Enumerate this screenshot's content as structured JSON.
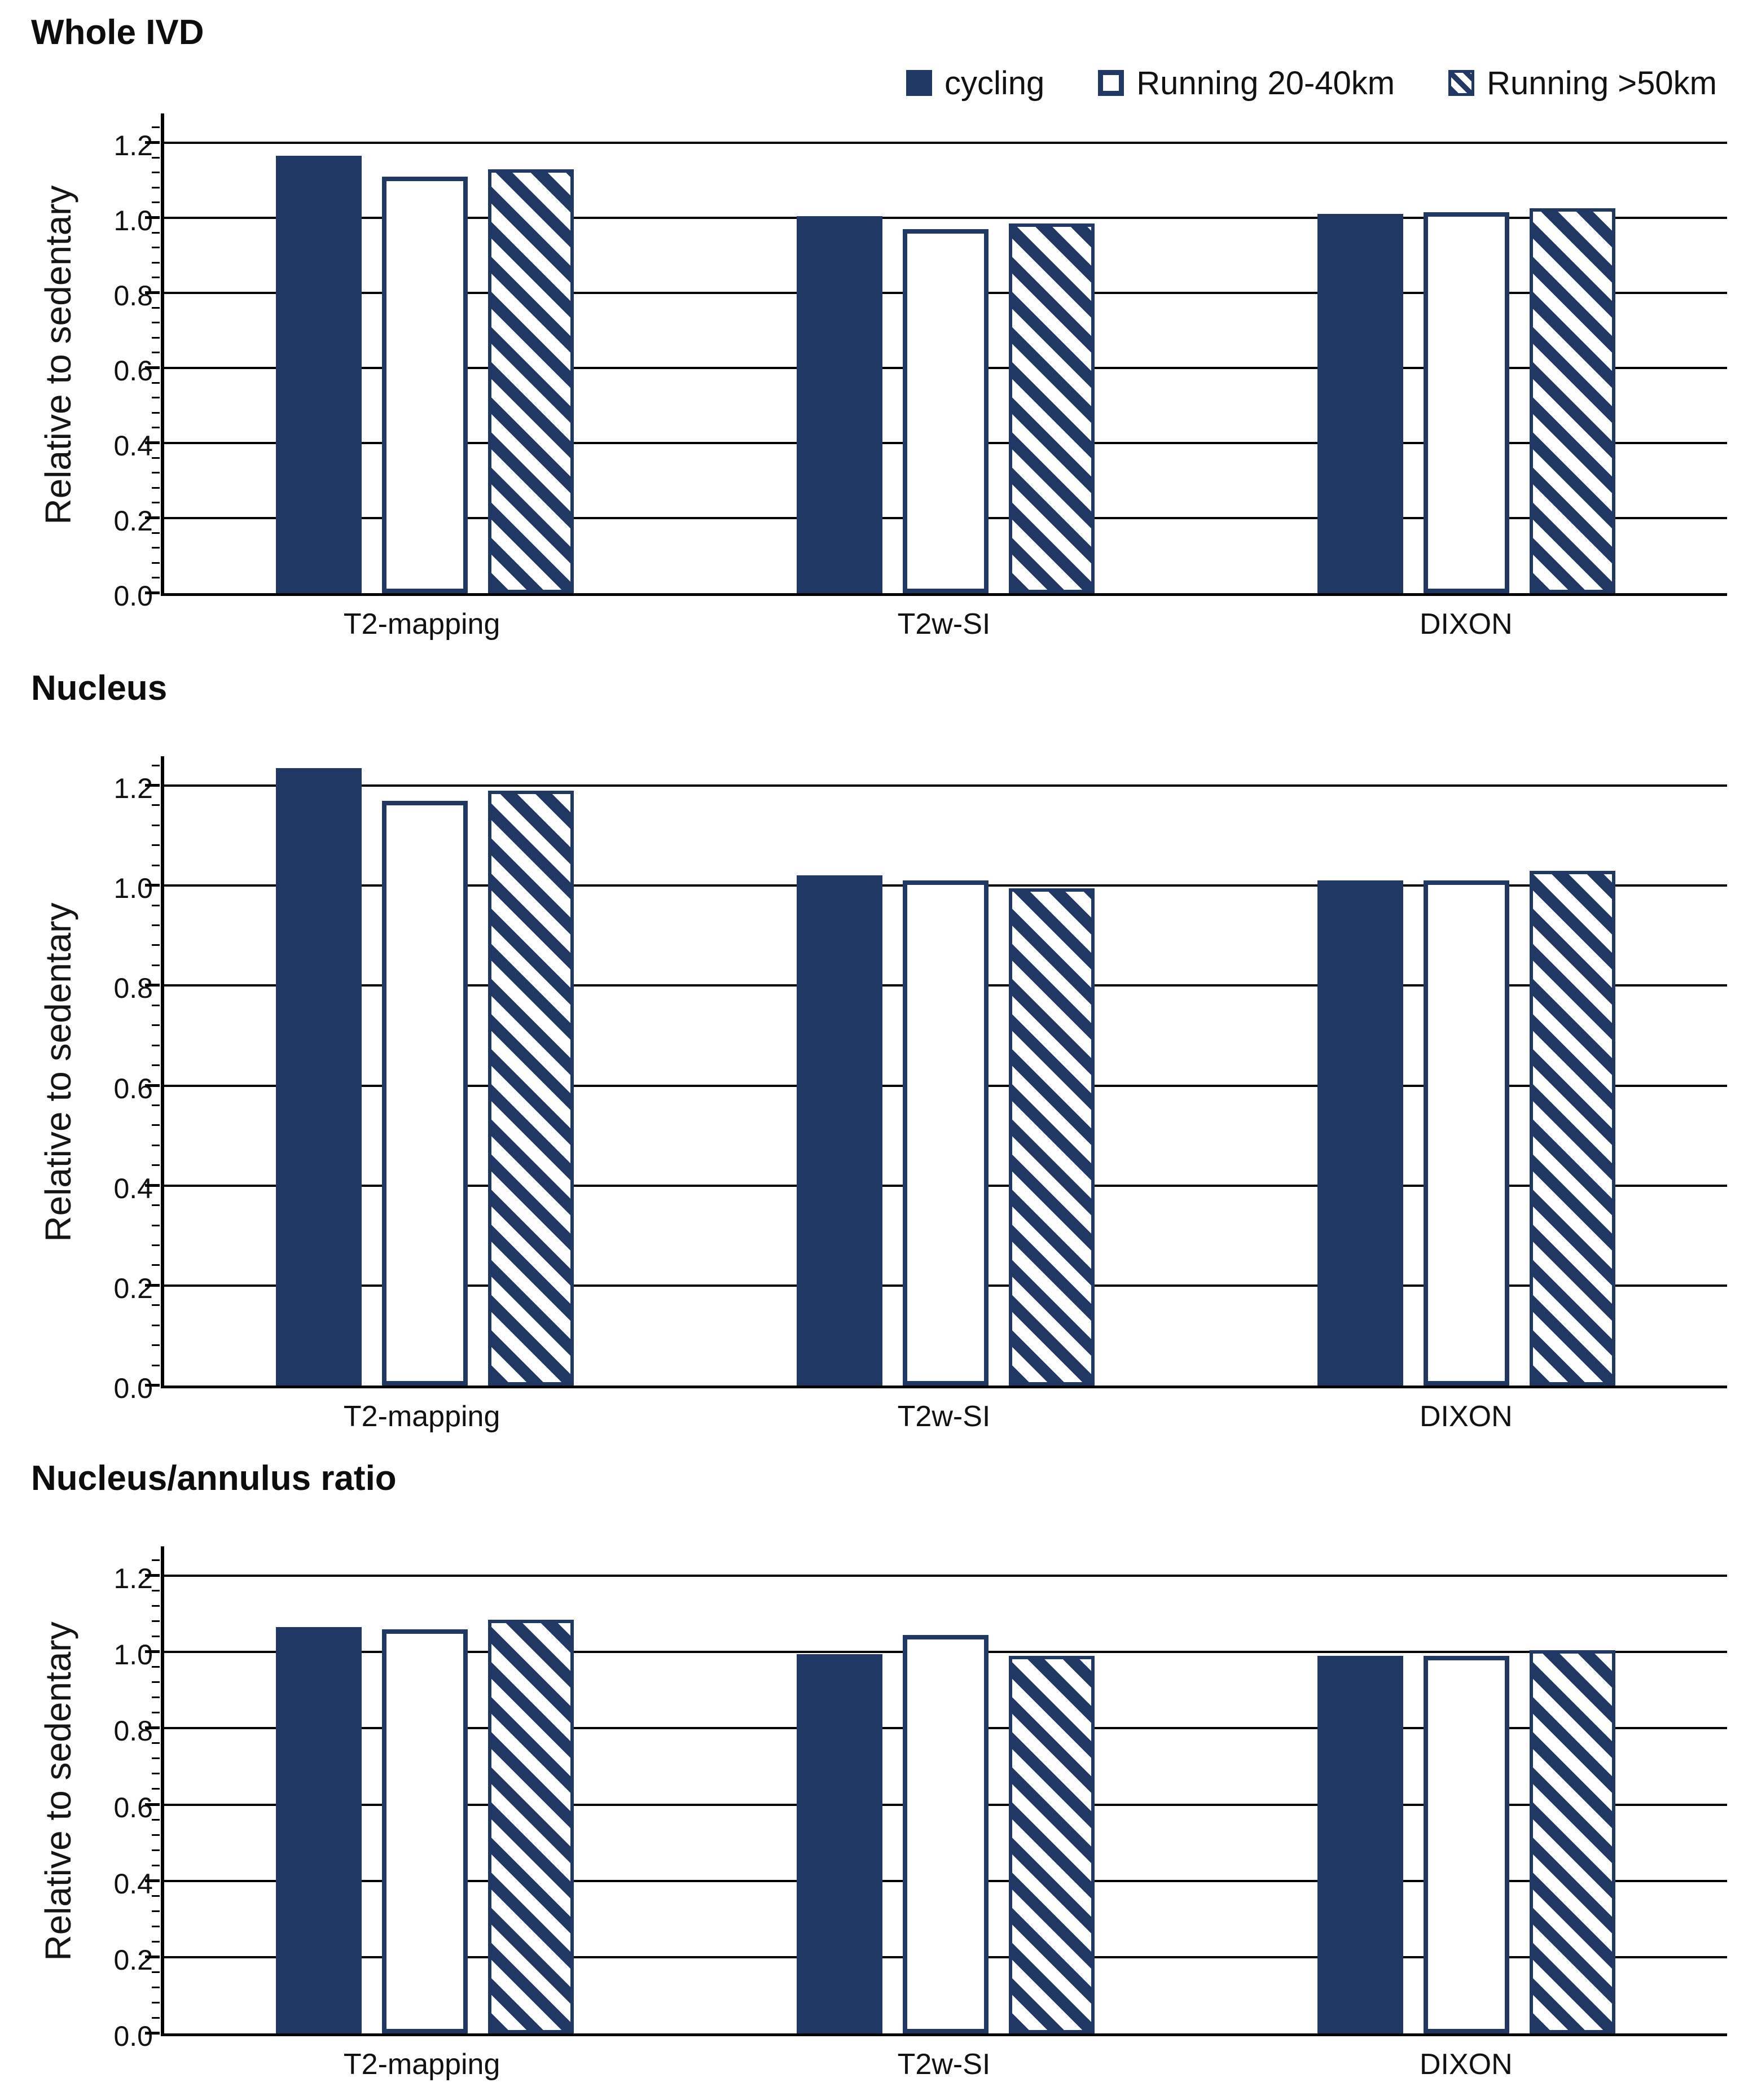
{
  "colors": {
    "navy": "#203864",
    "axis": "#000000",
    "background": "#ffffff"
  },
  "legend": [
    {
      "label": "cycling",
      "style": "solid"
    },
    {
      "label": "Running 20-40km",
      "style": "open"
    },
    {
      "label": "Running >50km",
      "style": "hatched"
    }
  ],
  "chart_data": [
    {
      "type": "bar",
      "title": "Whole IVD",
      "ylabel": "Relative to sedentary",
      "ylim": [
        0,
        1.2
      ],
      "ytick_step": 0.2,
      "ytick_labels": [
        "0.0",
        "0.2",
        "0.4",
        "0.6",
        "0.8",
        "1.0",
        "1.2"
      ],
      "grid": true,
      "legend_position": "top-right",
      "categories": [
        "T2-mapping",
        "T2w-SI",
        "DIXON"
      ],
      "series": [
        {
          "name": "cycling",
          "values": [
            1.165,
            1.005,
            1.01
          ]
        },
        {
          "name": "Running 20-40km",
          "values": [
            1.11,
            0.97,
            1.015
          ]
        },
        {
          "name": "Running >50km",
          "values": [
            1.13,
            0.985,
            1.025
          ]
        }
      ]
    },
    {
      "type": "bar",
      "title": "Nucleus",
      "ylabel": "Relative to sedentary",
      "ylim": [
        0,
        1.2
      ],
      "ytick_step": 0.2,
      "ytick_labels": [
        "0.0",
        "0.2",
        "0.4",
        "0.6",
        "0.8",
        "1.0",
        "1.2"
      ],
      "grid": true,
      "legend_position": "none",
      "categories": [
        "T2-mapping",
        "T2w-SI",
        "DIXON"
      ],
      "series": [
        {
          "name": "cycling",
          "values": [
            1.235,
            1.02,
            1.01
          ]
        },
        {
          "name": "Running 20-40km",
          "values": [
            1.17,
            1.01,
            1.01
          ]
        },
        {
          "name": "Running >50km",
          "values": [
            1.19,
            0.995,
            1.03
          ]
        }
      ]
    },
    {
      "type": "bar",
      "title": "Nucleus/annulus ratio",
      "ylabel": "Relative to sedentary",
      "ylim": [
        0,
        1.2
      ],
      "ytick_step": 0.2,
      "ytick_labels": [
        "0.0",
        "0.2",
        "0.4",
        "0.6",
        "0.8",
        "1.0",
        "1.2"
      ],
      "grid": true,
      "legend_position": "none",
      "categories": [
        "T2-mapping",
        "T2w-SI",
        "DIXON"
      ],
      "series": [
        {
          "name": "cycling",
          "values": [
            1.065,
            0.995,
            0.99
          ]
        },
        {
          "name": "Running 20-40km",
          "values": [
            1.06,
            1.045,
            0.99
          ]
        },
        {
          "name": "Running >50km",
          "values": [
            1.085,
            0.99,
            1.005
          ]
        }
      ]
    }
  ]
}
